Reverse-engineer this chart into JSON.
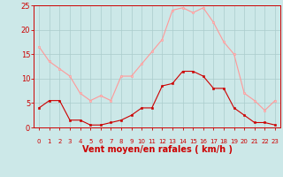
{
  "x": [
    0,
    1,
    2,
    3,
    4,
    5,
    6,
    7,
    8,
    9,
    10,
    11,
    12,
    13,
    14,
    15,
    16,
    17,
    18,
    19,
    20,
    21,
    22,
    23
  ],
  "wind_avg": [
    4,
    5.5,
    5.5,
    1.5,
    1.5,
    0.5,
    0.5,
    1,
    1.5,
    2.5,
    4,
    4,
    8.5,
    9,
    11.5,
    11.5,
    10.5,
    8,
    8,
    4,
    2.5,
    1,
    1,
    0.5
  ],
  "wind_gust": [
    16.5,
    13.5,
    12,
    10.5,
    7,
    5.5,
    6.5,
    5.5,
    10.5,
    10.5,
    13,
    15.5,
    18,
    24,
    24.5,
    23.5,
    24.5,
    21.5,
    17.5,
    15,
    7,
    5.5,
    3.5,
    5.5
  ],
  "xlabel": "Vent moyen/en rafales ( km/h )",
  "ylim": [
    0,
    25
  ],
  "yticks": [
    0,
    5,
    10,
    15,
    20,
    25
  ],
  "bg_color": "#cce8e8",
  "grid_color": "#aacccc",
  "line_avg_color": "#cc0000",
  "line_gust_color": "#ff9999",
  "marker_avg_color": "#cc0000",
  "marker_gust_color": "#ffbbbb",
  "xlabel_color": "#cc0000",
  "tick_color": "#cc0000",
  "axis_color": "#cc0000"
}
